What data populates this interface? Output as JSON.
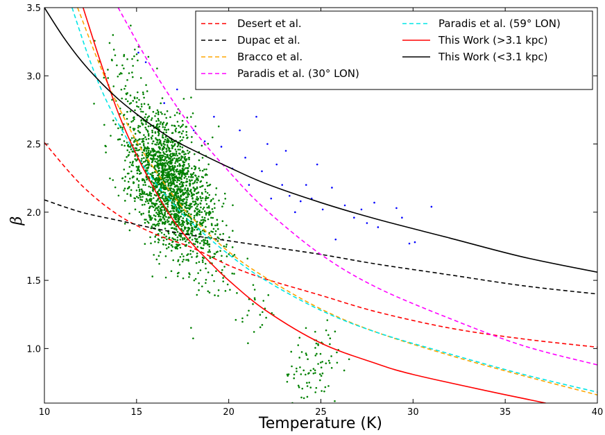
{
  "chart_data": {
    "type": "scatter",
    "xlabel": "Temperature (K)",
    "ylabel": "β",
    "xlim": [
      10,
      40
    ],
    "ylim": [
      0.6,
      3.5
    ],
    "xticks": [
      "10",
      "15",
      "20",
      "25",
      "30",
      "35",
      "40"
    ],
    "yticks": [
      "1.0",
      "1.5",
      "2.0",
      "2.5",
      "3.0",
      "3.5"
    ],
    "grid": false,
    "legend_position": "top-right",
    "series": [
      {
        "name": "Desert et al.",
        "kind": "curve",
        "style": "dashed",
        "color": "#ff0000",
        "x": [
          10,
          12,
          14,
          16,
          18,
          20,
          22,
          25,
          28,
          32,
          36,
          40
        ],
        "y": [
          2.51,
          2.2,
          1.98,
          1.84,
          1.74,
          1.61,
          1.51,
          1.39,
          1.27,
          1.15,
          1.07,
          1.01
        ]
      },
      {
        "name": "Dupac et al.",
        "kind": "curve",
        "style": "dashed",
        "color": "#000000",
        "x": [
          10,
          12,
          14,
          16,
          18,
          20,
          22,
          25,
          28,
          32,
          36,
          40
        ],
        "y": [
          2.09,
          2.0,
          1.94,
          1.88,
          1.83,
          1.79,
          1.75,
          1.69,
          1.62,
          1.54,
          1.46,
          1.4
        ]
      },
      {
        "name": "Bracco et al.",
        "kind": "curve",
        "style": "dashed",
        "color": "#ffa500",
        "x": [
          11.8,
          13,
          14,
          15,
          16,
          17,
          18,
          20,
          22,
          25,
          28,
          32,
          36,
          40
        ],
        "y": [
          3.5,
          3.08,
          2.78,
          2.52,
          2.31,
          2.12,
          1.96,
          1.71,
          1.52,
          1.29,
          1.12,
          0.95,
          0.8,
          0.66
        ]
      },
      {
        "name": "Paradis et al. (30° LON)",
        "kind": "curve",
        "style": "dashed",
        "color": "#ff00ff",
        "x": [
          14,
          16,
          18,
          20,
          22,
          25,
          28,
          32,
          36,
          40
        ],
        "y": [
          3.5,
          3.02,
          2.62,
          2.3,
          2.02,
          1.69,
          1.45,
          1.22,
          1.02,
          0.88
        ]
      },
      {
        "name": "Paradis et al. (59° LON)",
        "kind": "curve",
        "style": "dashed",
        "color": "#00e5e5",
        "x": [
          11.5,
          12.5,
          13.5,
          15,
          16,
          17,
          18,
          20,
          22,
          25,
          28,
          32,
          36,
          40
        ],
        "y": [
          3.5,
          3.1,
          2.78,
          2.42,
          2.22,
          2.06,
          1.92,
          1.69,
          1.5,
          1.28,
          1.12,
          0.96,
          0.81,
          0.68
        ]
      },
      {
        "name": "This Work (>3.1 kpc)",
        "kind": "curve",
        "style": "solid",
        "color": "#ff0000",
        "x": [
          12.1,
          13,
          14,
          15,
          16,
          17,
          18,
          19,
          20,
          22,
          25,
          28,
          30,
          34,
          37.2
        ],
        "y": [
          3.5,
          3.12,
          2.73,
          2.42,
          2.16,
          1.94,
          1.77,
          1.63,
          1.5,
          1.28,
          1.04,
          0.89,
          0.81,
          0.69,
          0.6
        ]
      },
      {
        "name": "This Work (<3.1 kpc)",
        "kind": "curve",
        "style": "solid",
        "color": "#000000",
        "x": [
          10,
          11,
          12,
          13,
          14,
          15,
          16,
          17,
          18,
          20,
          22,
          25,
          28,
          32,
          36,
          40
        ],
        "y": [
          3.5,
          3.29,
          3.11,
          2.96,
          2.83,
          2.72,
          2.62,
          2.53,
          2.46,
          2.33,
          2.21,
          2.07,
          1.95,
          1.81,
          1.67,
          1.56
        ]
      },
      {
        "name": "",
        "kind": "scatter",
        "color": "#008000",
        "centers": [
          [
            14.2,
            3.13
          ],
          [
            15,
            2.72
          ],
          [
            16.5,
            2.3
          ],
          [
            18,
            1.9
          ],
          [
            19.5,
            1.6
          ],
          [
            21.5,
            1.3
          ],
          [
            24,
            0.85
          ],
          [
            24.8,
            0.74
          ],
          [
            25.2,
            1.0
          ]
        ],
        "count": 2200
      },
      {
        "name": "",
        "kind": "scatter",
        "color": "#0000ff",
        "points": [
          [
            15.1,
            3.17
          ],
          [
            15.5,
            3.1
          ],
          [
            16.5,
            2.8
          ],
          [
            17.2,
            2.9
          ],
          [
            18.1,
            2.6
          ],
          [
            18.7,
            2.52
          ],
          [
            19.2,
            2.7
          ],
          [
            19.6,
            2.48
          ],
          [
            20.2,
            2.32
          ],
          [
            20.6,
            2.6
          ],
          [
            20.9,
            2.4
          ],
          [
            21.1,
            2.2
          ],
          [
            21.5,
            2.7
          ],
          [
            21.8,
            2.3
          ],
          [
            22.1,
            2.5
          ],
          [
            22.3,
            2.1
          ],
          [
            22.6,
            2.35
          ],
          [
            22.9,
            2.2
          ],
          [
            23.1,
            2.45
          ],
          [
            23.3,
            2.12
          ],
          [
            23.6,
            2.0
          ],
          [
            23.9,
            2.08
          ],
          [
            24.2,
            2.2
          ],
          [
            24.5,
            2.1
          ],
          [
            24.8,
            2.35
          ],
          [
            25.1,
            2.02
          ],
          [
            25.6,
            2.18
          ],
          [
            25.8,
            1.8
          ],
          [
            26.3,
            2.05
          ],
          [
            26.8,
            1.96
          ],
          [
            27.2,
            2.02
          ],
          [
            27.5,
            1.92
          ],
          [
            27.9,
            2.07
          ],
          [
            28.1,
            1.89
          ],
          [
            29.1,
            2.03
          ],
          [
            29.4,
            1.96
          ],
          [
            29.8,
            1.77
          ],
          [
            30.1,
            1.78
          ],
          [
            31.0,
            2.04
          ]
        ]
      }
    ]
  }
}
